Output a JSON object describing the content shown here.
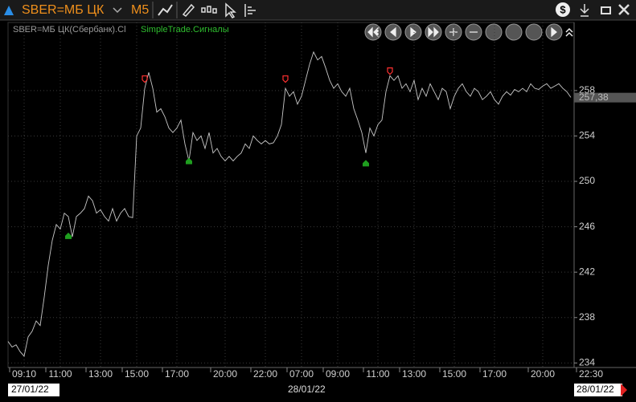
{
  "toolbar": {
    "symbol": "SBER=МБ ЦК",
    "timeframe": "M5"
  },
  "chart_data": {
    "type": "line",
    "categories": [
      null,
      null,
      null,
      null,
      "09:10",
      null,
      null,
      null,
      null,
      null,
      null,
      null,
      null,
      "11:00",
      null,
      null,
      null,
      null,
      null,
      null,
      null,
      null,
      null,
      "13:00",
      null,
      null,
      null,
      null,
      null,
      null,
      null,
      null,
      "15:00",
      null,
      null,
      null,
      null,
      null,
      null,
      null,
      null,
      null,
      "17:00",
      null,
      null,
      null,
      null,
      null,
      null,
      null,
      null,
      null,
      null,
      null,
      "20:00",
      null,
      null,
      null,
      null,
      null,
      null,
      null,
      null,
      null,
      "22:00",
      null,
      null,
      null,
      null,
      null,
      null,
      null,
      null,
      "07:00",
      null,
      null,
      null,
      null,
      null,
      null,
      null,
      null,
      "09:00",
      null,
      null,
      null,
      null,
      null,
      null,
      null,
      null,
      null,
      "11:00",
      null,
      null,
      null,
      null,
      null,
      null,
      null,
      null,
      "13:00",
      null,
      null,
      null,
      null,
      null,
      null,
      null,
      null,
      null,
      "15:00",
      null,
      null,
      null,
      null,
      null,
      null,
      null,
      null,
      null,
      "17:00",
      null,
      null,
      null,
      null,
      null,
      null,
      null,
      null,
      null,
      null,
      null,
      "20:00",
      null,
      null,
      null,
      null,
      null,
      null,
      null,
      null,
      null,
      null,
      null,
      "22:30"
    ],
    "series": [
      {
        "name": "SBER=МБ ЦК(Сбербанк).Cl",
        "color": "#c8c8c8",
        "values": [
          235.9,
          235.4,
          235.6,
          235.0,
          234.6,
          236.3,
          236.8,
          237.7,
          237.3,
          239.8,
          242.6,
          244.8,
          246.2,
          245.8,
          247.2,
          246.9,
          245.1,
          246.9,
          247.2,
          247.6,
          248.7,
          248.3,
          247.2,
          247.5,
          246.9,
          246.5,
          247.6,
          246.5,
          247.2,
          247.6,
          246.9,
          246.8,
          254.0,
          254.7,
          258.2,
          259.6,
          258.2,
          256.1,
          256.4,
          255.7,
          254.7,
          254.3,
          254.7,
          255.4,
          253.3,
          251.8,
          254.3,
          253.6,
          254.0,
          252.9,
          254.3,
          252.5,
          252.9,
          252.2,
          251.8,
          252.2,
          251.8,
          252.2,
          252.5,
          253.3,
          252.9,
          254.0,
          253.6,
          253.3,
          253.6,
          253.3,
          253.4,
          254.0,
          255.0,
          258.2,
          257.5,
          257.9,
          256.8,
          257.5,
          258.9,
          260.3,
          261.4,
          260.7,
          261.0,
          260.0,
          258.9,
          258.2,
          258.6,
          257.9,
          257.5,
          258.2,
          256.4,
          255.4,
          254.3,
          252.5,
          254.7,
          254.0,
          255.0,
          255.4,
          257.9,
          259.3,
          258.9,
          259.3,
          258.2,
          258.6,
          257.9,
          258.9,
          257.2,
          258.2,
          257.5,
          258.6,
          257.9,
          257.2,
          258.2,
          257.9,
          256.4,
          257.5,
          258.2,
          258.6,
          257.9,
          257.5,
          258.2,
          257.9,
          257.2,
          257.5,
          257.9,
          257.2,
          256.8,
          257.5,
          257.9,
          257.6,
          258.1,
          257.9,
          258.2,
          257.9,
          258.6,
          258.2,
          258.1,
          258.4,
          258.6,
          258.2,
          258.4,
          258.6,
          258.2,
          257.9,
          257.4,
          null,
          null,
          null,
          null,
          null
        ]
      }
    ],
    "signals": {
      "name": "SimpleTrade.Сигналы",
      "buy_color": "#1f9e1f",
      "sell_color": "#ff3030",
      "buy": [
        null,
        null,
        null,
        null,
        null,
        null,
        null,
        null,
        null,
        null,
        null,
        null,
        null,
        null,
        null,
        245.2,
        null,
        null,
        null,
        null,
        null,
        null,
        null,
        null,
        null,
        null,
        null,
        null,
        null,
        null,
        null,
        null,
        null,
        null,
        null,
        null,
        null,
        null,
        null,
        null,
        null,
        null,
        null,
        null,
        null,
        251.8,
        null,
        null,
        null,
        null,
        null,
        null,
        null,
        null,
        null,
        null,
        null,
        null,
        null,
        null,
        null,
        null,
        null,
        null,
        null,
        null,
        null,
        null,
        null,
        null,
        null,
        null,
        null,
        null,
        null,
        null,
        null,
        null,
        null,
        null,
        null,
        null,
        null,
        null,
        null,
        null,
        null,
        null,
        null,
        251.6,
        null,
        null,
        null,
        null,
        null,
        null,
        null,
        null,
        null,
        null,
        null,
        null,
        null,
        null,
        null,
        null,
        null,
        null,
        null,
        null,
        null,
        null,
        null,
        null,
        null,
        null,
        null,
        null,
        null,
        null,
        null,
        null,
        null,
        null,
        null,
        null,
        null,
        null,
        null,
        null,
        null,
        null,
        null,
        null,
        null,
        null,
        null,
        null,
        null,
        null,
        null,
        null,
        null,
        null,
        null,
        null,
        null,
        null,
        null,
        null
      ],
      "sell": [
        null,
        null,
        null,
        null,
        null,
        null,
        null,
        null,
        null,
        null,
        null,
        null,
        null,
        null,
        null,
        null,
        null,
        null,
        null,
        null,
        null,
        null,
        null,
        null,
        null,
        null,
        null,
        null,
        null,
        null,
        null,
        null,
        null,
        null,
        258.8,
        null,
        null,
        null,
        null,
        null,
        null,
        null,
        null,
        null,
        null,
        null,
        null,
        null,
        null,
        null,
        null,
        null,
        null,
        null,
        null,
        null,
        null,
        null,
        null,
        null,
        null,
        null,
        null,
        null,
        null,
        null,
        null,
        null,
        null,
        258.8,
        null,
        null,
        null,
        null,
        null,
        null,
        null,
        null,
        null,
        null,
        null,
        null,
        null,
        null,
        null,
        null,
        null,
        null,
        null,
        null,
        null,
        null,
        null,
        null,
        null,
        259.5,
        null,
        null,
        null,
        null,
        null,
        null,
        null,
        null,
        null,
        null,
        null,
        null,
        null,
        null,
        null,
        null,
        null,
        null,
        null,
        null,
        null,
        null,
        null,
        null,
        null,
        null,
        null,
        null,
        null,
        null,
        null,
        null,
        null,
        null,
        null,
        null,
        null,
        null,
        null,
        null,
        null,
        null,
        null,
        null,
        null,
        null,
        null,
        null,
        null,
        null
      ]
    },
    "ylim": [
      233.6,
      264.0
    ],
    "yticks": [
      234,
      238,
      242,
      246,
      250,
      254,
      258
    ],
    "grid": true,
    "last_price": {
      "value": 257.38,
      "label": "257,38"
    },
    "dates": [
      "27/01/22",
      "28/01/22",
      "28/01/22"
    ]
  }
}
